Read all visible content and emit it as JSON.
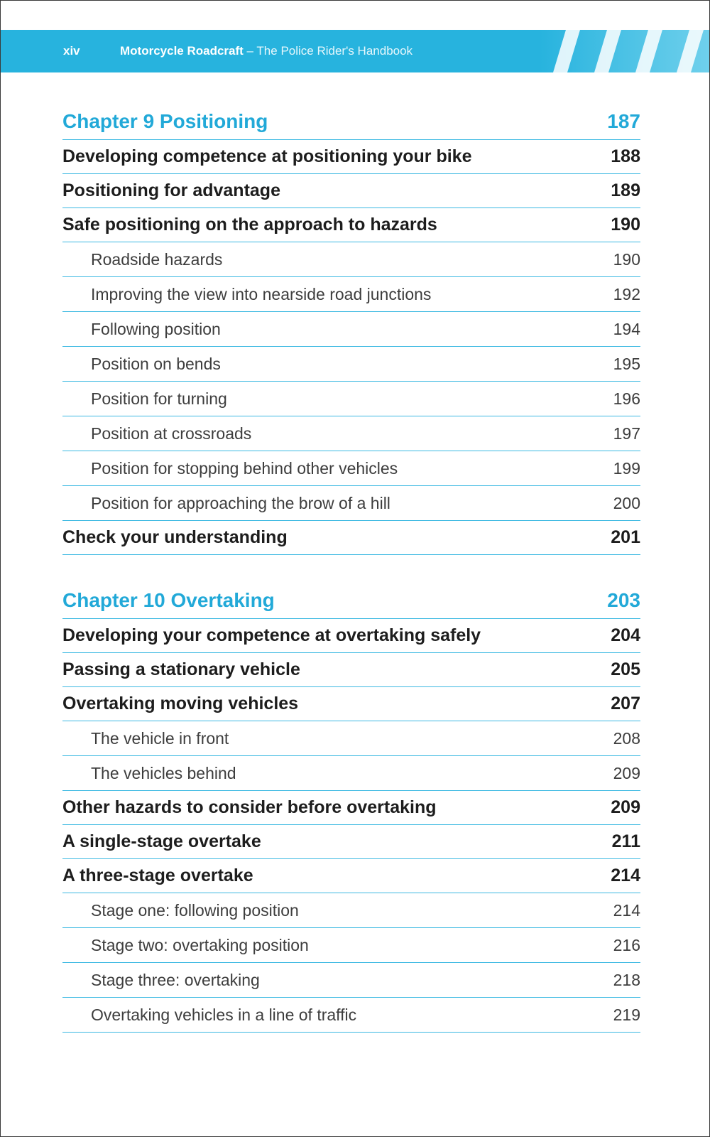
{
  "header": {
    "folio": "xiv",
    "book_title": "Motorcycle Roadcraft",
    "separator": " – ",
    "subtitle": "The Police Rider's Handbook",
    "accent_color": "#27b3de"
  },
  "toc": [
    {
      "chapter": {
        "title": "Chapter 9 Positioning",
        "page": "187"
      },
      "entries": [
        {
          "level": 1,
          "title": "Developing competence at positioning your bike",
          "page": "188"
        },
        {
          "level": 1,
          "title": "Positioning for advantage",
          "page": "189"
        },
        {
          "level": 1,
          "title": "Safe positioning on the approach to hazards",
          "page": "190"
        },
        {
          "level": 2,
          "title": "Roadside hazards",
          "page": "190"
        },
        {
          "level": 2,
          "title": "Improving the view into nearside road junctions",
          "page": "192"
        },
        {
          "level": 2,
          "title": "Following position",
          "page": "194"
        },
        {
          "level": 2,
          "title": "Position on bends",
          "page": "195"
        },
        {
          "level": 2,
          "title": "Position for turning",
          "page": "196"
        },
        {
          "level": 2,
          "title": "Position at crossroads",
          "page": "197"
        },
        {
          "level": 2,
          "title": "Position for stopping behind other vehicles",
          "page": "199"
        },
        {
          "level": 2,
          "title": "Position for approaching the brow of a hill",
          "page": "200"
        },
        {
          "level": 1,
          "title": "Check your understanding",
          "page": "201"
        }
      ]
    },
    {
      "chapter": {
        "title": "Chapter 10 Overtaking",
        "page": "203"
      },
      "entries": [
        {
          "level": 1,
          "title": "Developing your competence at overtaking safely",
          "page": "204"
        },
        {
          "level": 1,
          "title": "Passing a stationary vehicle",
          "page": "205"
        },
        {
          "level": 1,
          "title": "Overtaking moving vehicles",
          "page": "207"
        },
        {
          "level": 2,
          "title": "The vehicle in front",
          "page": "208"
        },
        {
          "level": 2,
          "title": "The vehicles behind",
          "page": "209"
        },
        {
          "level": 1,
          "title": "Other hazards to consider before overtaking",
          "page": "209"
        },
        {
          "level": 1,
          "title": "A single-stage overtake",
          "page": "211"
        },
        {
          "level": 1,
          "title": "A three-stage overtake",
          "page": "214"
        },
        {
          "level": 2,
          "title": "Stage one: following position",
          "page": "214"
        },
        {
          "level": 2,
          "title": "Stage two: overtaking position",
          "page": "216"
        },
        {
          "level": 2,
          "title": "Stage three: overtaking",
          "page": "218"
        },
        {
          "level": 2,
          "title": "Overtaking vehicles in a line of traffic",
          "page": "219"
        }
      ]
    }
  ]
}
